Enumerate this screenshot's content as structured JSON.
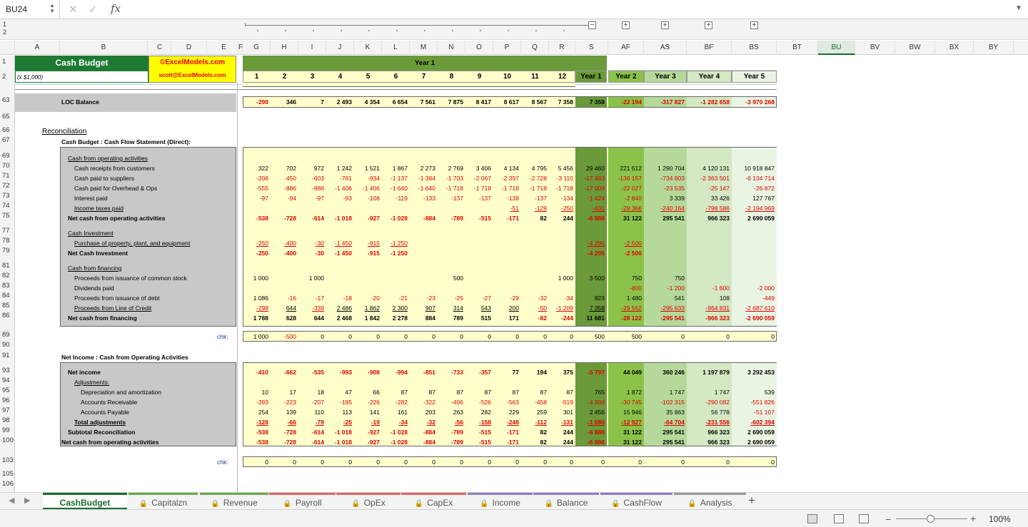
{
  "formula_bar": {
    "cell_ref": "BU24",
    "fx": "fx"
  },
  "outline": {
    "levels": [
      "1",
      "2"
    ],
    "buttons": [
      "−",
      "+",
      "+",
      "+",
      "+"
    ]
  },
  "columns": [
    "A",
    "B",
    "C",
    "D",
    "E",
    "F",
    "G",
    "H",
    "I",
    "J",
    "K",
    "L",
    "M",
    "N",
    "O",
    "P",
    "Q",
    "R",
    "S",
    "AF",
    "AS",
    "BF",
    "BS",
    "BT",
    "BU",
    "BV",
    "BW",
    "BX",
    "BY"
  ],
  "rows": [
    "1",
    "2",
    "63",
    "65",
    "66",
    "67",
    "69",
    "70",
    "71",
    "72",
    "73",
    "74",
    "75",
    "77",
    "78",
    "79",
    "81",
    "82",
    "83",
    "84",
    "85",
    "86",
    "89",
    "90",
    "91",
    "93",
    "94",
    "95",
    "96",
    "97",
    "98",
    "99",
    "100",
    "103",
    "105",
    "106"
  ],
  "header": {
    "title": "Cash Budget",
    "units": "(x $1,000)",
    "brand": "©ExcelModels.com",
    "email": "scott@ExcelModels.com",
    "year1": "Year 1",
    "periods": [
      "1",
      "2",
      "3",
      "4",
      "5",
      "6",
      "7",
      "8",
      "9",
      "10",
      "11",
      "12"
    ],
    "years": [
      "Year 1",
      "Year 2",
      "Year 3",
      "Year 4",
      "Year 5"
    ]
  },
  "loc": {
    "label": "LOC Balance",
    "values": [
      "-298",
      "346",
      "7",
      "2 493",
      "4 354",
      "6 654",
      "7 561",
      "7 875",
      "8 417",
      "8 617",
      "8 567",
      "7 358",
      "7 358",
      "-22 194",
      "-317 827",
      "-1 282 658",
      "-3 970 268"
    ]
  },
  "recon": {
    "title": "Reconciliation",
    "subtitle": "Cash Budget : Cash Flow Statement (Direct):",
    "rows": [
      {
        "label": "Cash from operating activities",
        "style": "u",
        "values": []
      },
      {
        "label": "Cash receipts from customers",
        "style": "i1",
        "values": [
          "322",
          "702",
          "972",
          "1 242",
          "1 521",
          "1 867",
          "2 273",
          "2 769",
          "3 406",
          "4 134",
          "4 795",
          "5 456",
          "29 460",
          "221 512",
          "1 290 704",
          "4 120 131",
          "10 918 847"
        ]
      },
      {
        "label": "Cash paid to suppliers",
        "style": "i1",
        "values": [
          "-208",
          "-450",
          "-603",
          "-761",
          "-934",
          "-1 137",
          "-1 384",
          "-1 703",
          "-2 067",
          "-2 397",
          "-2 728",
          "-3 110",
          "-17 483",
          "-136 157",
          "-734 803",
          "-2 363 501",
          "-6 134 714"
        ]
      },
      {
        "label": "Cash paid for Overhead & Ops",
        "style": "i1",
        "values": [
          "-555",
          "-886",
          "-886",
          "-1 406",
          "-1 406",
          "-1 640",
          "-1 640",
          "-1 718",
          "-1 718",
          "-1 718",
          "-1 718",
          "-1 718",
          "-17 009",
          "-22 027",
          "-23 535",
          "-25 147",
          "-26 872"
        ]
      },
      {
        "label": "Interest paid",
        "style": "i1",
        "values": [
          "-97",
          "-94",
          "-97",
          "-93",
          "-108",
          "-119",
          "-133",
          "-137",
          "-137",
          "-138",
          "-137",
          "-134",
          "-1 424",
          "-2 840",
          "3 339",
          "33 426",
          "127 767"
        ]
      },
      {
        "label": "Income taxes paid",
        "style": "i1u",
        "values": [
          "",
          "",
          "",
          "",
          "",
          "",
          "",
          "",
          "",
          "-51",
          "-129",
          "-250",
          "-431",
          "-29 366",
          "-240 164",
          "-798 586",
          "-2 194 969"
        ]
      },
      {
        "label": "Net cash from operating activities",
        "style": "b",
        "values": [
          "-538",
          "-728",
          "-614",
          "-1 018",
          "-927",
          "-1 028",
          "-884",
          "-789",
          "-515",
          "-171",
          "82",
          "244",
          "-6 886",
          "31 122",
          "295 541",
          "966 323",
          "2 690 059"
        ]
      },
      {
        "label": "",
        "style": "gap",
        "values": []
      },
      {
        "label": "Cash Investment",
        "style": "u",
        "values": []
      },
      {
        "label": "Purchase of property, plant, and equipment",
        "style": "i1u",
        "values": [
          "-250",
          "-400",
          "-30",
          "-1 450",
          "-915",
          "-1 250",
          "",
          "",
          "",
          "",
          "",
          "",
          "-4 295",
          "-2 500",
          "",
          "",
          ""
        ]
      },
      {
        "label": "Net Cash Investment",
        "style": "b",
        "values": [
          "-250",
          "-400",
          "-30",
          "-1 450",
          "-915",
          "-1 250",
          "",
          "",
          "",
          "",
          "",
          "",
          "-4 295",
          "-2 500",
          "",
          "",
          ""
        ]
      },
      {
        "label": "",
        "style": "gap",
        "values": []
      },
      {
        "label": "Cash from financing",
        "style": "u",
        "values": []
      },
      {
        "label": "Proceeds from issuance of common stock",
        "style": "i1",
        "values": [
          "1 000",
          "",
          "1 000",
          "",
          "",
          "",
          "",
          "500",
          "",
          "",
          "",
          "1 000",
          "3 500",
          "750",
          "750",
          "",
          ""
        ]
      },
      {
        "label": "Dividends paid",
        "style": "i1",
        "values": [
          "",
          "",
          "",
          "",
          "",
          "",
          "",
          "",
          "",
          "",
          "",
          "",
          "",
          "-800",
          "-1 200",
          "-1 600",
          "-2 000"
        ]
      },
      {
        "label": "Proceeds from issuance of debt",
        "style": "i1",
        "values": [
          "1 086",
          "-16",
          "-17",
          "-18",
          "-20",
          "-21",
          "-23",
          "-25",
          "-27",
          "-29",
          "-32",
          "-34",
          "823",
          "1 480",
          "541",
          "108",
          "-449"
        ]
      },
      {
        "label": "Proceeds from Line of Credit",
        "style": "i1u",
        "values": [
          "-298",
          "644",
          "-339",
          "2 486",
          "1 862",
          "2 300",
          "907",
          "314",
          "543",
          "200",
          "-50",
          "-1 209",
          "7 358",
          "-29 552",
          "-295 633",
          "-964 831",
          "-2 687 610"
        ]
      },
      {
        "label": "Net cash from financing",
        "style": "b",
        "values": [
          "1 788",
          "628",
          "644",
          "2 468",
          "1 842",
          "2 278",
          "884",
          "789",
          "515",
          "171",
          "-82",
          "-244",
          "11 681",
          "-28 122",
          "-295 541",
          "-966 323",
          "-2 690 059"
        ]
      }
    ]
  },
  "chk1": {
    "label": "chk:",
    "values": [
      "1 000",
      "-500",
      "0",
      "0",
      "0",
      "0",
      "0",
      "0",
      "0",
      "0",
      "0",
      "0",
      "500",
      "500",
      "0",
      "0",
      "0"
    ]
  },
  "ni": {
    "title": "Net Income : Cash from Operating Activities",
    "rows": [
      {
        "label": "Net income",
        "style": "b1",
        "values": [
          "-410",
          "-662",
          "-535",
          "-993",
          "-908",
          "-994",
          "-851",
          "-733",
          "-357",
          "77",
          "194",
          "375",
          "-5 797",
          "44 049",
          "360 246",
          "1 197 879",
          "3 292 453"
        ]
      },
      {
        "label": "Adjustments:",
        "style": "i2u",
        "values": []
      },
      {
        "label": "Depreciation and amortization",
        "style": "i3",
        "values": [
          "10",
          "17",
          "18",
          "47",
          "66",
          "87",
          "87",
          "87",
          "87",
          "87",
          "87",
          "87",
          "765",
          "1 872",
          "1 747",
          "1 747",
          "539"
        ]
      },
      {
        "label": "Accounts Receivable",
        "style": "i3",
        "values": [
          "-393",
          "-223",
          "-207",
          "-185",
          "-226",
          "-282",
          "-322",
          "-406",
          "-526",
          "-563",
          "-458",
          "-519",
          "-4 309",
          "-30 745",
          "-102 315",
          "-290 082",
          "-551 826"
        ]
      },
      {
        "label": "Accounts Payable",
        "style": "i3",
        "values": [
          "254",
          "139",
          "110",
          "113",
          "141",
          "161",
          "203",
          "263",
          "282",
          "229",
          "259",
          "301",
          "2 456",
          "15 946",
          "35 863",
          "56 778",
          "-51 107"
        ]
      },
      {
        "label": "Total adjustments",
        "style": "i2ub",
        "values": [
          "-128",
          "-66",
          "-79",
          "-25",
          "-19",
          "-34",
          "-32",
          "-56",
          "-158",
          "-248",
          "-112",
          "-131",
          "-1 088",
          "-12 927",
          "-64 704",
          "-231 556",
          "-602 394"
        ]
      },
      {
        "label": "Subtotal Reconciliation",
        "style": "b1",
        "values": [
          "-538",
          "-728",
          "-614",
          "-1 018",
          "-927",
          "-1 028",
          "-884",
          "-789",
          "-515",
          "-171",
          "82",
          "244",
          "-6 886",
          "31 122",
          "295 541",
          "966 323",
          "2 690 059"
        ]
      },
      {
        "label": "Net cash from operating activities",
        "style": "b",
        "values": [
          "-538",
          "-728",
          "-614",
          "-1 018",
          "-927",
          "-1 028",
          "-884",
          "-789",
          "-515",
          "-171",
          "82",
          "244",
          "-6 886",
          "31 122",
          "295 541",
          "966 323",
          "2 690 059"
        ]
      }
    ]
  },
  "chk2": {
    "label": "chk:",
    "values": [
      "0",
      "0",
      "0",
      "0",
      "0",
      "0",
      "0",
      "0",
      "0",
      "0",
      "0",
      "0",
      "0",
      "0",
      "0",
      "0",
      "0"
    ]
  },
  "tabs": [
    "CashBudget",
    "Capitalzn",
    "Revenue",
    "Payroll",
    "OpEx",
    "CapEx",
    "Income",
    "Balance",
    "CashFlow",
    "Analysis"
  ],
  "status": {
    "zoom": "100%"
  }
}
